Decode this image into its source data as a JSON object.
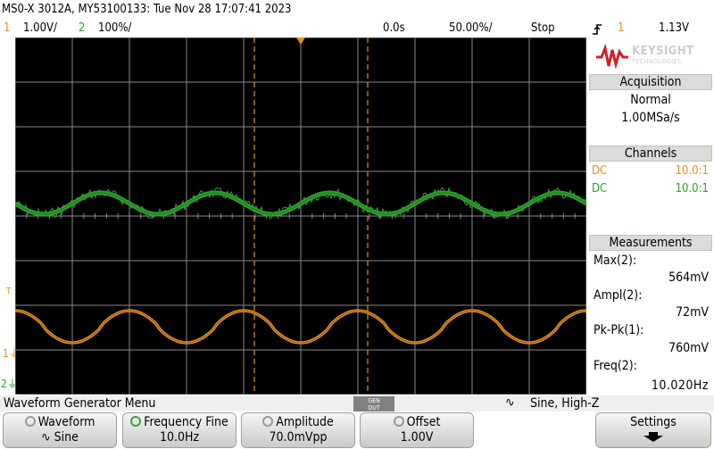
{
  "header": {
    "title": "MS0-X 3012A, MY53100133: Tue Nov 28 17:07:41 2023"
  },
  "settings": {
    "ch1_num": "1",
    "ch1_scale": "1.00V/",
    "ch2_num": "2",
    "ch2_scale": "100%/",
    "time_delay": "0.0s",
    "time_scale": "50.00%/",
    "run_state": "Stop",
    "trigger_slope_icon": "rising-edge-icon",
    "trigger_source": "1",
    "trigger_level": "1.13V"
  },
  "colors": {
    "ch1": "#e8901e",
    "ch2": "#2fa02f",
    "grid": "#8a8a8a",
    "screen_bg": "#000000",
    "keysight_red": "#d11f2a"
  },
  "screen_markers": {
    "ch1_ref": "1",
    "ch2_ref": "2",
    "ch1_trigger_mark": "T"
  },
  "brand": {
    "name": "KEYSIGHT",
    "subtitle": "TECHNOLOGIES"
  },
  "acquisition": {
    "header": "Acquisition",
    "mode": "Normal",
    "rate": "1.00MSa/s"
  },
  "channels": {
    "header": "Channels",
    "items": [
      {
        "coupling": "DC",
        "probe": "10.0:1",
        "color": "#e8901e"
      },
      {
        "coupling": "DC",
        "probe": "10.0:1",
        "color": "#2fa02f"
      }
    ]
  },
  "measurements": {
    "header": "Measurements",
    "items": [
      {
        "label": "Max(2):",
        "value": "564mV"
      },
      {
        "label": "Ampl(2):",
        "value": "72mV"
      },
      {
        "label": "Pk-Pk(1):",
        "value": "760mV"
      },
      {
        "label": "Freq(2):",
        "value": "10.020Hz"
      }
    ]
  },
  "menu": {
    "title": "Waveform Generator Menu",
    "gen_out_top": "GEN",
    "gen_out_bottom": "OUT",
    "status": "Sine, High-Z"
  },
  "softkeys": [
    {
      "label": "Waveform",
      "value": "Sine"
    },
    {
      "label": "Frequency Fine",
      "value": "10.0Hz"
    },
    {
      "label": "Amplitude",
      "value": "70.0mVpp"
    },
    {
      "label": "Offset",
      "value": "1.00V"
    },
    {
      "label": "Settings",
      "value": ""
    }
  ]
}
